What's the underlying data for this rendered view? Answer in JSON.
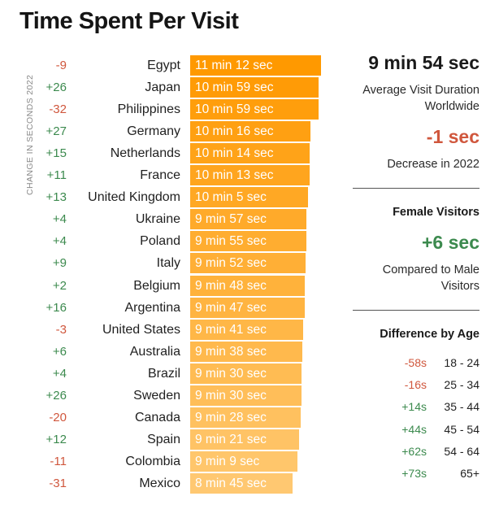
{
  "title": "Time Spent Per Visit",
  "side_label": "CHANGE IN SECONDS 2022",
  "summary": {
    "average_value": "9 min 54 sec",
    "average_label": "Average Visit Duration Worldwide",
    "change_value": "-1 sec",
    "change_label": "Decrease in 2022",
    "female_heading": "Female Visitors",
    "female_value": "+6 sec",
    "female_label": "Compared to Male Visitors",
    "age_heading": "Difference by Age"
  },
  "colors": {
    "bar_dark": "#ff9900",
    "bar_light": "#ffc871",
    "positive": "#3c8a4e",
    "negative": "#d0573d"
  },
  "chart_data": {
    "type": "bar",
    "title": "Time Spent Per Visit",
    "unit": "seconds",
    "categories": [
      "Egypt",
      "Japan",
      "Philippines",
      "Germany",
      "Netherlands",
      "France",
      "United Kingdom",
      "Ukraine",
      "Poland",
      "Italy",
      "Belgium",
      "Argentina",
      "United States",
      "Australia",
      "Brazil",
      "Sweden",
      "Canada",
      "Spain",
      "Colombia",
      "Mexico"
    ],
    "values": [
      672,
      659,
      659,
      616,
      614,
      613,
      605,
      597,
      595,
      592,
      588,
      587,
      581,
      578,
      570,
      570,
      568,
      561,
      549,
      525
    ],
    "value_labels": [
      "11 min 12 sec",
      "10 min 59 sec",
      "10 min 59 sec",
      "10 min 16 sec",
      "10 min 14 sec",
      "10 min 13 sec",
      "10 min 5 sec",
      "9 min 57 sec",
      "9 min 55 sec",
      "9 min 52 sec",
      "9 min 48 sec",
      "9 min 47 sec",
      "9 min 41 sec",
      "9 min 38 sec",
      "9 min 30 sec",
      "9 min 30 sec",
      "9 min 28 sec",
      "9 min 21 sec",
      "9 min 9 sec",
      "8 min 45 sec"
    ],
    "change_labels": [
      "-9",
      "+26",
      "-32",
      "+27",
      "+15",
      "+11",
      "+13",
      "+4",
      "+4",
      "+9",
      "+2",
      "+16",
      "-3",
      "+6",
      "+4",
      "+26",
      "-20",
      "+12",
      "-11",
      "-31"
    ],
    "changes": [
      -9,
      26,
      -32,
      27,
      15,
      11,
      13,
      4,
      4,
      9,
      2,
      16,
      -3,
      6,
      4,
      26,
      -20,
      12,
      -11,
      -31
    ],
    "xlim": [
      0,
      672
    ],
    "age_difference": {
      "categories": [
        "18 - 24",
        "25 - 34",
        "35 - 44",
        "45 - 54",
        "54 - 64",
        "65+"
      ],
      "values": [
        -58,
        -16,
        14,
        44,
        62,
        73
      ],
      "labels": [
        "-58s",
        "-16s",
        "+14s",
        "+44s",
        "+62s",
        "+73s"
      ]
    }
  }
}
